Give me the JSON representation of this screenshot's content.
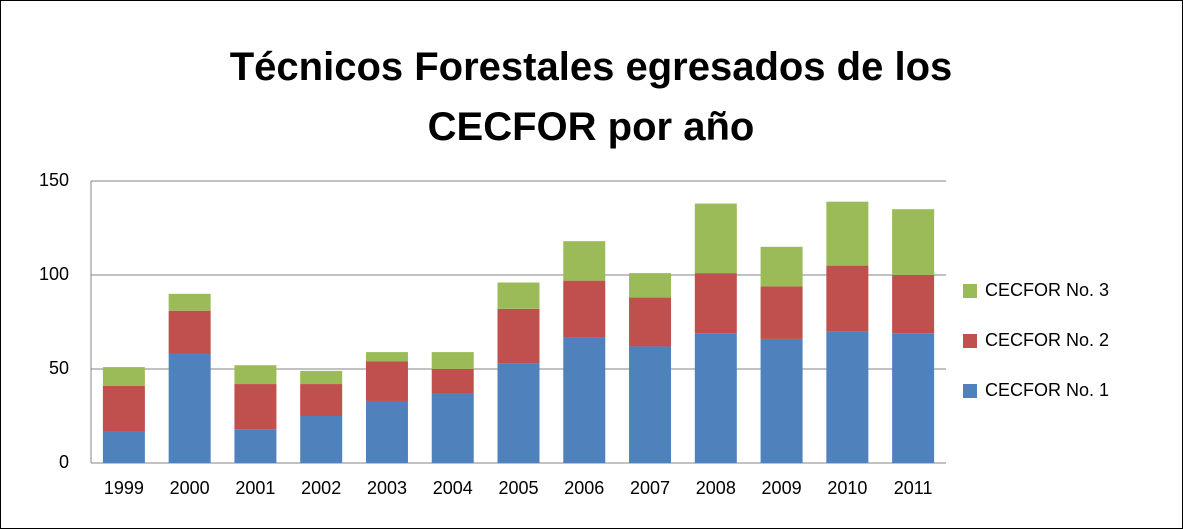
{
  "chart_data": {
    "type": "stacked_bar",
    "title": "Técnicos Forestales egresados de los CECFOR por año",
    "categories": [
      "1999",
      "2000",
      "2001",
      "2002",
      "2003",
      "2004",
      "2005",
      "2006",
      "2007",
      "2008",
      "2009",
      "2010",
      "2011"
    ],
    "series": [
      {
        "name": "CECFOR No. 1",
        "color": "#4f81bd",
        "values": [
          17,
          58,
          18,
          25,
          33,
          37,
          53,
          67,
          62,
          69,
          66,
          70,
          69
        ]
      },
      {
        "name": "CECFOR No. 2",
        "color": "#c0504d",
        "values": [
          24,
          23,
          24,
          17,
          21,
          13,
          29,
          30,
          26,
          32,
          28,
          35,
          31
        ]
      },
      {
        "name": "CECFOR No. 3",
        "color": "#9bbb59",
        "values": [
          10,
          9,
          10,
          7,
          5,
          9,
          14,
          21,
          13,
          37,
          21,
          34,
          35
        ]
      }
    ],
    "ylim": [
      0,
      150
    ],
    "yticks": [
      0,
      50,
      100,
      150
    ],
    "grid": true,
    "legend": "right"
  }
}
